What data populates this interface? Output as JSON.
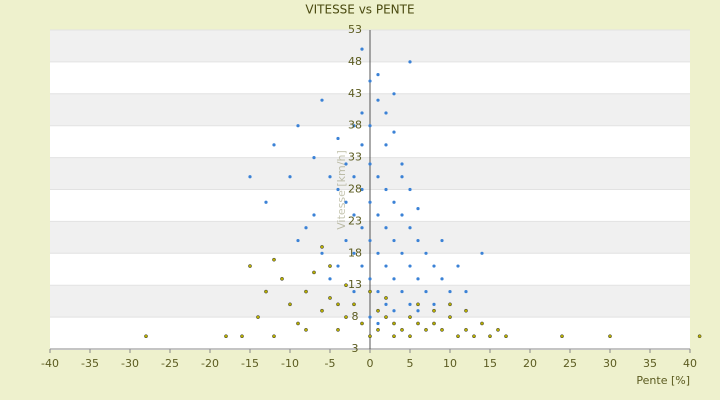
{
  "chart_data": {
    "type": "scatter",
    "title": "VITESSE vs PENTE",
    "x_label": "Pente [%]",
    "y_label": "Vitesse [km/h]",
    "xlim": [
      -40,
      40
    ],
    "xticks": [
      -40,
      -35,
      -30,
      -25,
      -20,
      -15,
      -10,
      -5,
      0,
      5,
      10,
      15,
      20,
      25,
      30,
      35,
      40
    ],
    "ylim": [
      3,
      53
    ],
    "yticks": [
      3,
      8,
      13,
      18,
      23,
      28,
      33,
      38,
      43,
      48,
      53
    ],
    "grid": true,
    "series": [
      {
        "color": "#3b82d6",
        "x": [
          -1,
          0,
          1,
          2,
          -2,
          3,
          5,
          -6,
          -9,
          -12,
          -10,
          -7,
          -5,
          -4,
          -3,
          -2,
          -1,
          0,
          1,
          2,
          3,
          4,
          5,
          6,
          -1,
          0,
          1,
          2,
          3,
          4,
          5,
          6,
          7,
          8,
          9,
          10,
          -3,
          -2,
          -1,
          0,
          1,
          2,
          3,
          -4,
          -5,
          -6,
          -8,
          -3,
          -2,
          -1,
          0,
          1,
          2,
          3,
          4,
          5,
          6,
          7,
          8,
          12,
          14,
          4,
          5,
          6,
          -4,
          2,
          0,
          -1,
          1,
          3,
          4,
          0,
          1,
          -2,
          -15,
          -13,
          9,
          11,
          -7,
          -9
        ],
        "values": [
          50,
          45,
          42,
          40,
          38,
          37,
          48,
          42,
          38,
          35,
          30,
          33,
          30,
          28,
          26,
          24,
          22,
          20,
          18,
          16,
          14,
          12,
          10,
          9,
          35,
          32,
          30,
          28,
          26,
          24,
          22,
          20,
          18,
          16,
          14,
          12,
          20,
          18,
          16,
          14,
          12,
          10,
          9,
          16,
          14,
          18,
          22,
          32,
          30,
          28,
          26,
          24,
          22,
          20,
          18,
          16,
          14,
          12,
          10,
          12,
          18,
          32,
          28,
          25,
          36,
          35,
          38,
          40,
          46,
          43,
          30,
          8,
          7,
          12,
          30,
          26,
          20,
          16,
          24,
          20
        ]
      },
      {
        "color": "#b9b000",
        "x": [
          -28,
          -18,
          -16,
          -14,
          -13,
          -12,
          -11,
          -10,
          -9,
          -8,
          -7,
          -6,
          -5,
          -4,
          -3,
          -2,
          -1,
          0,
          1,
          2,
          3,
          4,
          5,
          6,
          7,
          8,
          9,
          10,
          11,
          12,
          13,
          14,
          15,
          16,
          17,
          24,
          30,
          41.2,
          -15,
          -6,
          -3,
          2,
          6,
          10,
          12,
          -4,
          0,
          1,
          3,
          5,
          -8,
          -12,
          8,
          -5
        ],
        "values": [
          5,
          5,
          5,
          8,
          12,
          17,
          14,
          10,
          7,
          12,
          15,
          9,
          11,
          6,
          8,
          10,
          7,
          5,
          9,
          8,
          7,
          6,
          8,
          7,
          6,
          7,
          6,
          8,
          5,
          6,
          5,
          7,
          5,
          6,
          5,
          5,
          5,
          5,
          16,
          19,
          13,
          11,
          10,
          10,
          9,
          10,
          12,
          6,
          5,
          5,
          6,
          5,
          9,
          16
        ]
      }
    ]
  }
}
